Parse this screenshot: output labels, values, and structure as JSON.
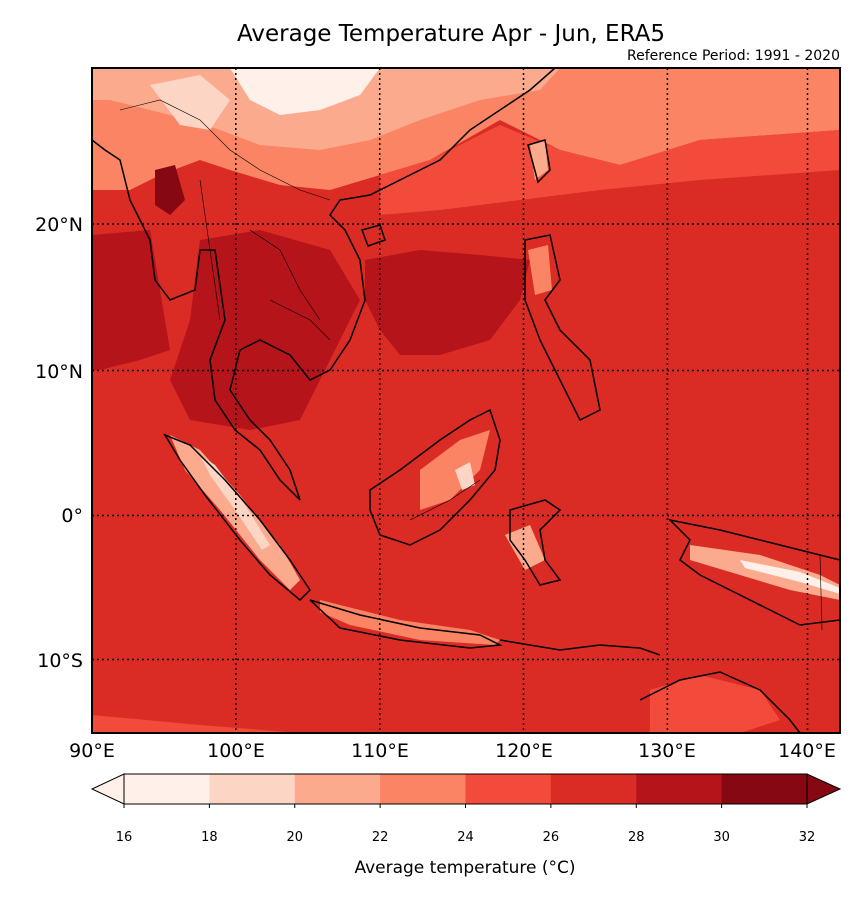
{
  "title": "Average Temperature Apr - Jun, ERA5",
  "subtitle": "Reference Period: 1991 - 2020",
  "map": {
    "lon_range": [
      90,
      142
    ],
    "lat_range": [
      -15,
      30
    ],
    "meridians": [
      100,
      110,
      120,
      130,
      140
    ],
    "parallels": [
      -10,
      0,
      10,
      20
    ],
    "lon_labels": [
      "90°E",
      "100°E",
      "110°E",
      "120°E",
      "130°E",
      "140°E"
    ],
    "lat_labels": [
      "20°N",
      "10°N",
      "0°",
      "10°S"
    ],
    "grid_style": "dotted"
  },
  "colorbar": {
    "label": "Average temperature (°C)",
    "ticks": [
      "16",
      "18",
      "20",
      "22",
      "24",
      "26",
      "28",
      "30",
      "32"
    ],
    "levels": [
      16,
      18,
      20,
      22,
      24,
      26,
      28,
      30,
      32
    ],
    "colors": [
      "#fff0e9",
      "#fdd5c4",
      "#fcaa8e",
      "#fb8464",
      "#f24b3b",
      "#db2b25",
      "#b5141b",
      "#860812"
    ],
    "extend": "both"
  },
  "palette": {
    "ocean_default": "#db2b25",
    "ocean_warm": "#b5141b",
    "cool_north": "#fb8464",
    "highland": "#fdd5c4",
    "coast_line": "#000000"
  }
}
